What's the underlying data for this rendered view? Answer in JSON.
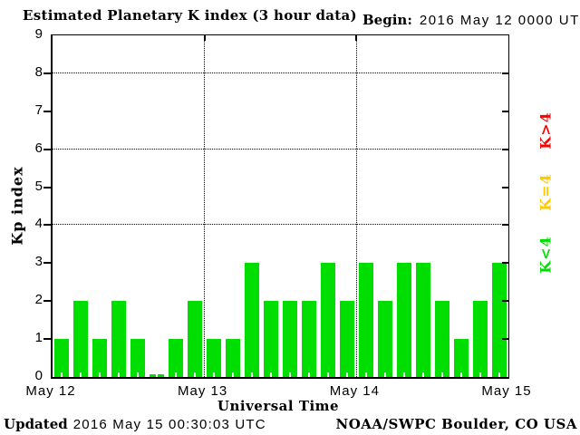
{
  "title": "Estimated Planetary K index (3 hour data)",
  "begin_label": "Begin:",
  "begin_value": "2016 May 12 0000 UTC",
  "y_axis": {
    "label": "Kp index",
    "ticks": [
      0,
      1,
      2,
      3,
      4,
      5,
      6,
      7,
      8,
      9
    ]
  },
  "x_axis": {
    "label": "Universal Time",
    "date_labels": [
      "May 12",
      "May 13",
      "May 14",
      "May 15"
    ]
  },
  "legend": [
    {
      "label": "K>4",
      "color": "#ff0000"
    },
    {
      "label": "K=4",
      "color": "#ffc800"
    },
    {
      "label": "K<4",
      "color": "#00dd00"
    }
  ],
  "footer": {
    "updated_label": "Updated",
    "updated_value": "2016 May 15 00:30:03 UTC",
    "credit": "NOAA/SWPC Boulder, CO USA"
  },
  "chart_data": {
    "type": "bar",
    "title": "Estimated Planetary K index (3 hour data)",
    "begin": "2016 May 12 0000 UTC",
    "interval_hours": 3,
    "xlabel": "Universal Time",
    "ylabel": "Kp index",
    "ylim": [
      0,
      9
    ],
    "dotted_gridlines_y": [
      4,
      6,
      8
    ],
    "bar_color": "#00dd00",
    "color_rules": {
      "below_4": "#00dd00",
      "equal_4": "#ffc800",
      "above_4": "#ff0000"
    },
    "days": [
      {
        "date": "May 12",
        "values": [
          1,
          2,
          1,
          2,
          1,
          0,
          1,
          2
        ]
      },
      {
        "date": "May 13",
        "values": [
          1,
          1,
          3,
          2,
          2,
          2,
          3,
          2
        ]
      },
      {
        "date": "May 14",
        "values": [
          3,
          2,
          3,
          3,
          2,
          1,
          2,
          3
        ]
      }
    ],
    "values": [
      1,
      2,
      1,
      2,
      1,
      0,
      1,
      2,
      1,
      1,
      3,
      2,
      2,
      2,
      3,
      2,
      3,
      2,
      3,
      3,
      2,
      1,
      2,
      3
    ]
  }
}
